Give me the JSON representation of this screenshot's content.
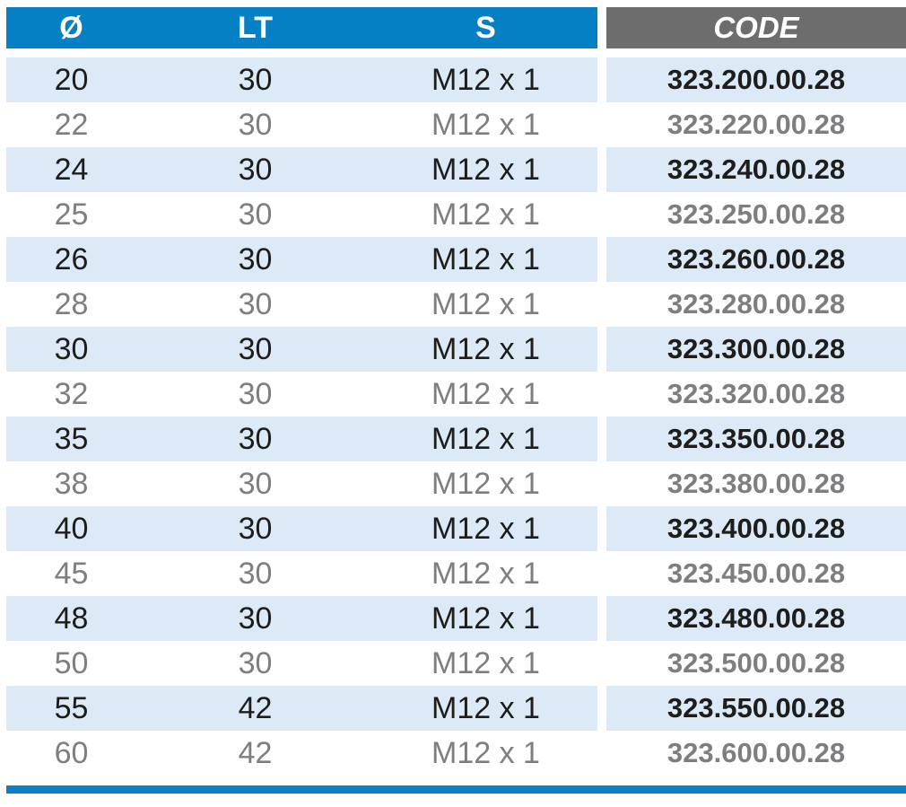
{
  "table": {
    "columns": {
      "diameter": "Ø",
      "lt": "LT",
      "s": "S",
      "code": "CODE"
    },
    "rows": [
      {
        "diameter": "20",
        "lt": "30",
        "s": "M12 x 1",
        "code": "323.200.00.28",
        "highlighted": true
      },
      {
        "diameter": "22",
        "lt": "30",
        "s": "M12 x 1",
        "code": "323.220.00.28",
        "highlighted": false
      },
      {
        "diameter": "24",
        "lt": "30",
        "s": "M12 x 1",
        "code": "323.240.00.28",
        "highlighted": true
      },
      {
        "diameter": "25",
        "lt": "30",
        "s": "M12 x 1",
        "code": "323.250.00.28",
        "highlighted": false
      },
      {
        "diameter": "26",
        "lt": "30",
        "s": "M12 x 1",
        "code": "323.260.00.28",
        "highlighted": true
      },
      {
        "diameter": "28",
        "lt": "30",
        "s": "M12 x 1",
        "code": "323.280.00.28",
        "highlighted": false
      },
      {
        "diameter": "30",
        "lt": "30",
        "s": "M12 x 1",
        "code": "323.300.00.28",
        "highlighted": true
      },
      {
        "diameter": "32",
        "lt": "30",
        "s": "M12 x 1",
        "code": "323.320.00.28",
        "highlighted": false
      },
      {
        "diameter": "35",
        "lt": "30",
        "s": "M12 x 1",
        "code": "323.350.00.28",
        "highlighted": true
      },
      {
        "diameter": "38",
        "lt": "30",
        "s": "M12 x 1",
        "code": "323.380.00.28",
        "highlighted": false
      },
      {
        "diameter": "40",
        "lt": "30",
        "s": "M12 x 1",
        "code": "323.400.00.28",
        "highlighted": true
      },
      {
        "diameter": "45",
        "lt": "30",
        "s": "M12 x 1",
        "code": "323.450.00.28",
        "highlighted": false
      },
      {
        "diameter": "48",
        "lt": "30",
        "s": "M12 x 1",
        "code": "323.480.00.28",
        "highlighted": true
      },
      {
        "diameter": "50",
        "lt": "30",
        "s": "M12 x 1",
        "code": "323.500.00.28",
        "highlighted": false
      },
      {
        "diameter": "55",
        "lt": "42",
        "s": "M12 x 1",
        "code": "323.550.00.28",
        "highlighted": true
      },
      {
        "diameter": "60",
        "lt": "42",
        "s": "M12 x 1",
        "code": "323.600.00.28",
        "highlighted": false
      }
    ]
  },
  "colors": {
    "header_blue": "#0580c4",
    "header_gray": "#6d6d6d",
    "row_highlight": "#dce9f6",
    "row_plain": "#ffffff",
    "text_dark": "#1d1d1b",
    "text_gray": "#7d7e80",
    "bottom_bar": "#0b80c4"
  }
}
